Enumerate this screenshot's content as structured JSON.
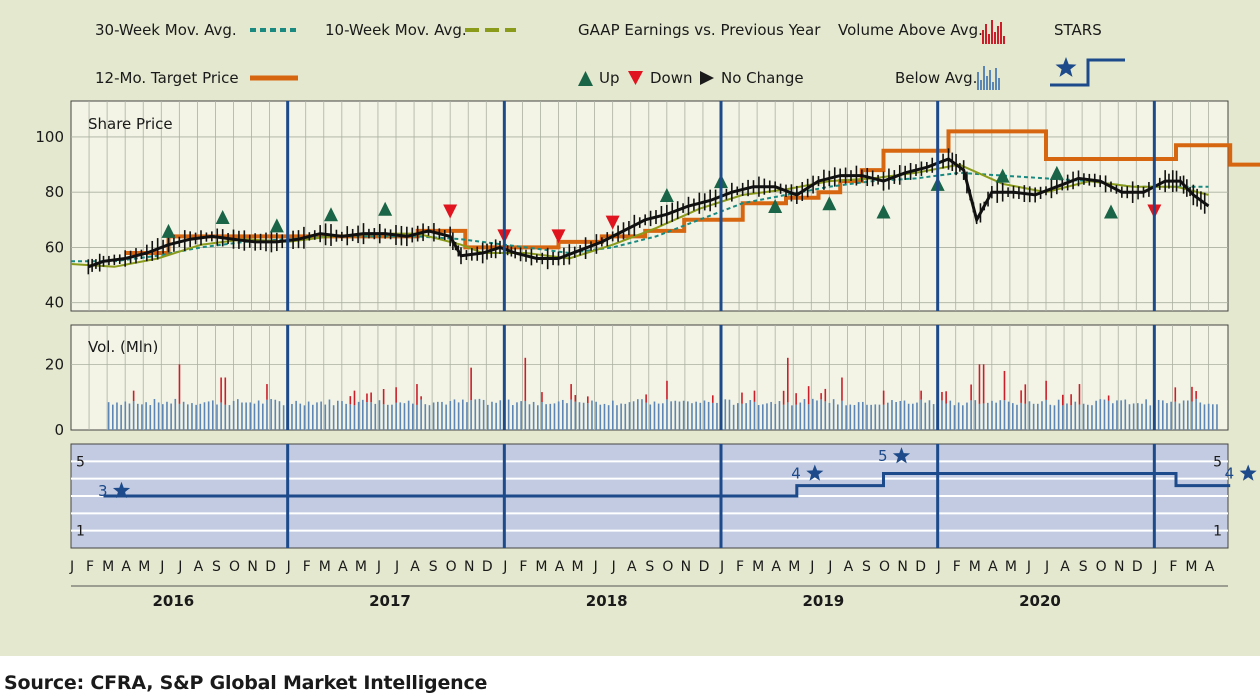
{
  "legend": {
    "ma30": "30-Week Mov. Avg.",
    "ma10": "10-Week Mov. Avg.",
    "gaap": "GAAP Earnings vs. Previous Year",
    "vol_above": "Volume Above Avg.",
    "stars": "STARS",
    "target": "12-Mo. Target Price",
    "up": "Up",
    "down": "Down",
    "nochange": "No Change",
    "vol_below": "Below Avg."
  },
  "colors": {
    "background": "#e4e8cf",
    "panel": "#f3f4e6",
    "stars_panel": "#c2cbe1",
    "ma30": "#1a8a80",
    "ma10": "#8a9a1a",
    "target": "#d76611",
    "up": "#1a6447",
    "down": "#e0141e",
    "vol_above": "#cc1e2a",
    "vol_below": "#5b86b5",
    "stars": "#1d4a8a",
    "grid": "#aab0a0"
  },
  "source": "Source: CFRA, S&P Global Market Intelligence",
  "chart_data": {
    "type": "line",
    "price_panel": {
      "label": "Share Price",
      "yticks": [
        "100",
        "80",
        "60",
        "40"
      ],
      "ylim": [
        37,
        113
      ],
      "price": [
        [
          2016.08,
          53
        ],
        [
          2016.15,
          55
        ],
        [
          2016.25,
          56
        ],
        [
          2016.35,
          58
        ],
        [
          2016.45,
          61
        ],
        [
          2016.55,
          63
        ],
        [
          2016.65,
          64
        ],
        [
          2016.75,
          63
        ],
        [
          2016.85,
          62
        ],
        [
          2016.95,
          62
        ],
        [
          2017.05,
          63
        ],
        [
          2017.15,
          65
        ],
        [
          2017.25,
          64
        ],
        [
          2017.35,
          65
        ],
        [
          2017.45,
          65
        ],
        [
          2017.55,
          64
        ],
        [
          2017.65,
          66
        ],
        [
          2017.75,
          64
        ],
        [
          2017.8,
          57
        ],
        [
          2017.9,
          58
        ],
        [
          2017.98,
          60
        ],
        [
          2018.05,
          58
        ],
        [
          2018.15,
          56
        ],
        [
          2018.25,
          56
        ],
        [
          2018.35,
          59
        ],
        [
          2018.45,
          62
        ],
        [
          2018.55,
          66
        ],
        [
          2018.65,
          70
        ],
        [
          2018.75,
          72
        ],
        [
          2018.85,
          75
        ],
        [
          2018.95,
          77
        ],
        [
          2019.05,
          80
        ],
        [
          2019.15,
          82
        ],
        [
          2019.25,
          82
        ],
        [
          2019.35,
          79
        ],
        [
          2019.45,
          84
        ],
        [
          2019.55,
          86
        ],
        [
          2019.65,
          86
        ],
        [
          2019.75,
          84
        ],
        [
          2019.85,
          87
        ],
        [
          2019.95,
          89
        ],
        [
          2020.05,
          92
        ],
        [
          2020.12,
          88
        ],
        [
          2020.18,
          70
        ],
        [
          2020.25,
          80
        ],
        [
          2020.35,
          80
        ],
        [
          2020.45,
          79
        ],
        [
          2020.55,
          82
        ],
        [
          2020.65,
          85
        ],
        [
          2020.75,
          84
        ],
        [
          2020.85,
          80
        ],
        [
          2020.95,
          80
        ],
        [
          2021.05,
          84
        ],
        [
          2021.12,
          84
        ],
        [
          2021.18,
          79
        ],
        [
          2021.25,
          75
        ]
      ],
      "ma30": [
        [
          2016.0,
          55
        ],
        [
          2016.2,
          55
        ],
        [
          2016.4,
          57
        ],
        [
          2016.6,
          60
        ],
        [
          2016.8,
          62
        ],
        [
          2017.0,
          63
        ],
        [
          2017.2,
          64
        ],
        [
          2017.4,
          64
        ],
        [
          2017.6,
          64
        ],
        [
          2017.8,
          63
        ],
        [
          2017.9,
          62
        ],
        [
          2018.1,
          60
        ],
        [
          2018.3,
          58
        ],
        [
          2018.5,
          60
        ],
        [
          2018.7,
          64
        ],
        [
          2018.9,
          70
        ],
        [
          2019.1,
          76
        ],
        [
          2019.3,
          79
        ],
        [
          2019.5,
          82
        ],
        [
          2019.7,
          84
        ],
        [
          2019.9,
          85
        ],
        [
          2020.1,
          87
        ],
        [
          2020.3,
          86
        ],
        [
          2020.5,
          85
        ],
        [
          2020.7,
          84
        ],
        [
          2020.9,
          82
        ],
        [
          2021.1,
          82
        ],
        [
          2021.25,
          82
        ]
      ],
      "ma10": [
        [
          2016.0,
          54
        ],
        [
          2016.2,
          53
        ],
        [
          2016.4,
          56
        ],
        [
          2016.6,
          61
        ],
        [
          2016.8,
          63
        ],
        [
          2017.0,
          62
        ],
        [
          2017.2,
          64
        ],
        [
          2017.4,
          65
        ],
        [
          2017.6,
          65
        ],
        [
          2017.8,
          61
        ],
        [
          2017.9,
          58
        ],
        [
          2018.1,
          58
        ],
        [
          2018.3,
          56
        ],
        [
          2018.5,
          61
        ],
        [
          2018.7,
          67
        ],
        [
          2018.9,
          74
        ],
        [
          2019.1,
          79
        ],
        [
          2019.3,
          81
        ],
        [
          2019.5,
          84
        ],
        [
          2019.7,
          85
        ],
        [
          2019.9,
          87
        ],
        [
          2020.1,
          90
        ],
        [
          2020.3,
          83
        ],
        [
          2020.5,
          80
        ],
        [
          2020.7,
          84
        ],
        [
          2020.9,
          82
        ],
        [
          2021.1,
          82
        ],
        [
          2021.25,
          79
        ]
      ],
      "target": [
        [
          2016.25,
          58
        ],
        [
          2016.45,
          58
        ],
        [
          2016.45,
          64
        ],
        [
          2017.6,
          64
        ],
        [
          2017.6,
          66
        ],
        [
          2017.82,
          66
        ],
        [
          2017.82,
          60
        ],
        [
          2018.25,
          60
        ],
        [
          2018.25,
          62
        ],
        [
          2018.45,
          62
        ],
        [
          2018.45,
          64
        ],
        [
          2018.65,
          64
        ],
        [
          2018.65,
          66
        ],
        [
          2018.83,
          66
        ],
        [
          2018.83,
          70
        ],
        [
          2019.1,
          70
        ],
        [
          2019.1,
          76
        ],
        [
          2019.3,
          76
        ],
        [
          2019.3,
          78
        ],
        [
          2019.45,
          78
        ],
        [
          2019.45,
          80
        ],
        [
          2019.55,
          80
        ],
        [
          2019.55,
          84
        ],
        [
          2019.65,
          84
        ],
        [
          2019.65,
          88
        ],
        [
          2019.75,
          88
        ],
        [
          2019.75,
          95
        ],
        [
          2020.05,
          95
        ],
        [
          2020.05,
          102
        ],
        [
          2020.5,
          102
        ],
        [
          2020.5,
          92
        ],
        [
          2021.1,
          92
        ],
        [
          2021.1,
          97
        ],
        [
          2021.35,
          97
        ],
        [
          2021.35,
          90
        ],
        [
          2021.5,
          90
        ]
      ],
      "eps_up": [
        [
          2016.45,
          66
        ],
        [
          2016.7,
          71
        ],
        [
          2016.95,
          68
        ],
        [
          2017.2,
          72
        ],
        [
          2017.45,
          74
        ],
        [
          2018.75,
          79
        ],
        [
          2019.0,
          84
        ],
        [
          2019.25,
          75
        ],
        [
          2019.5,
          76
        ],
        [
          2019.75,
          73
        ],
        [
          2020.0,
          83
        ],
        [
          2020.3,
          86
        ],
        [
          2020.55,
          87
        ],
        [
          2020.8,
          73
        ]
      ],
      "eps_down": [
        [
          2017.75,
          73
        ],
        [
          2018.0,
          64
        ],
        [
          2018.25,
          64
        ],
        [
          2018.5,
          69
        ],
        [
          2021.0,
          73
        ]
      ]
    },
    "volume_panel": {
      "label": "Vol. (Mln)",
      "yticks": [
        "20",
        "0"
      ],
      "ylim": [
        0,
        32
      ],
      "avg": 10,
      "spikes": [
        [
          2016.5,
          20
        ],
        [
          2016.7,
          16
        ],
        [
          2016.9,
          14
        ],
        [
          2017.0,
          18
        ],
        [
          2017.3,
          12
        ],
        [
          2017.6,
          14
        ],
        [
          2017.85,
          19
        ],
        [
          2018.0,
          25
        ],
        [
          2018.1,
          22
        ],
        [
          2018.3,
          14
        ],
        [
          2018.75,
          15
        ],
        [
          2019.0,
          20
        ],
        [
          2019.15,
          12
        ],
        [
          2019.3,
          22
        ],
        [
          2019.55,
          16
        ],
        [
          2019.75,
          12
        ],
        [
          2020.2,
          20
        ],
        [
          2020.3,
          18
        ],
        [
          2020.5,
          15
        ],
        [
          2020.65,
          14
        ],
        [
          2021.0,
          15
        ],
        [
          2021.1,
          13
        ],
        [
          2021.3,
          14
        ]
      ]
    },
    "stars_panel": {
      "yticks": [
        "5",
        "1"
      ],
      "ylim": [
        0,
        6
      ],
      "rating": [
        [
          2016.15,
          3
        ],
        [
          2019.35,
          3
        ],
        [
          2019.35,
          3.6
        ],
        [
          2019.75,
          3.6
        ],
        [
          2019.75,
          4.3
        ],
        [
          2021.1,
          4.3
        ],
        [
          2021.1,
          3.6
        ],
        [
          2021.35,
          3.6
        ]
      ],
      "stars": [
        {
          "x": 2016.15,
          "y": 3,
          "label": "3"
        },
        {
          "x": 2019.35,
          "y": 4,
          "label": "4"
        },
        {
          "x": 2019.75,
          "y": 5,
          "label": "5"
        },
        {
          "x": 2021.35,
          "y": 4,
          "label": "4"
        }
      ]
    },
    "months": [
      "J",
      "F",
      "M",
      "A",
      "M",
      "J",
      "J",
      "A",
      "S",
      "O",
      "N",
      "D"
    ],
    "years": [
      "2016",
      "2017",
      "2018",
      "2019",
      "2020"
    ],
    "x_start": 2016.0,
    "x_end": 2021.34
  }
}
